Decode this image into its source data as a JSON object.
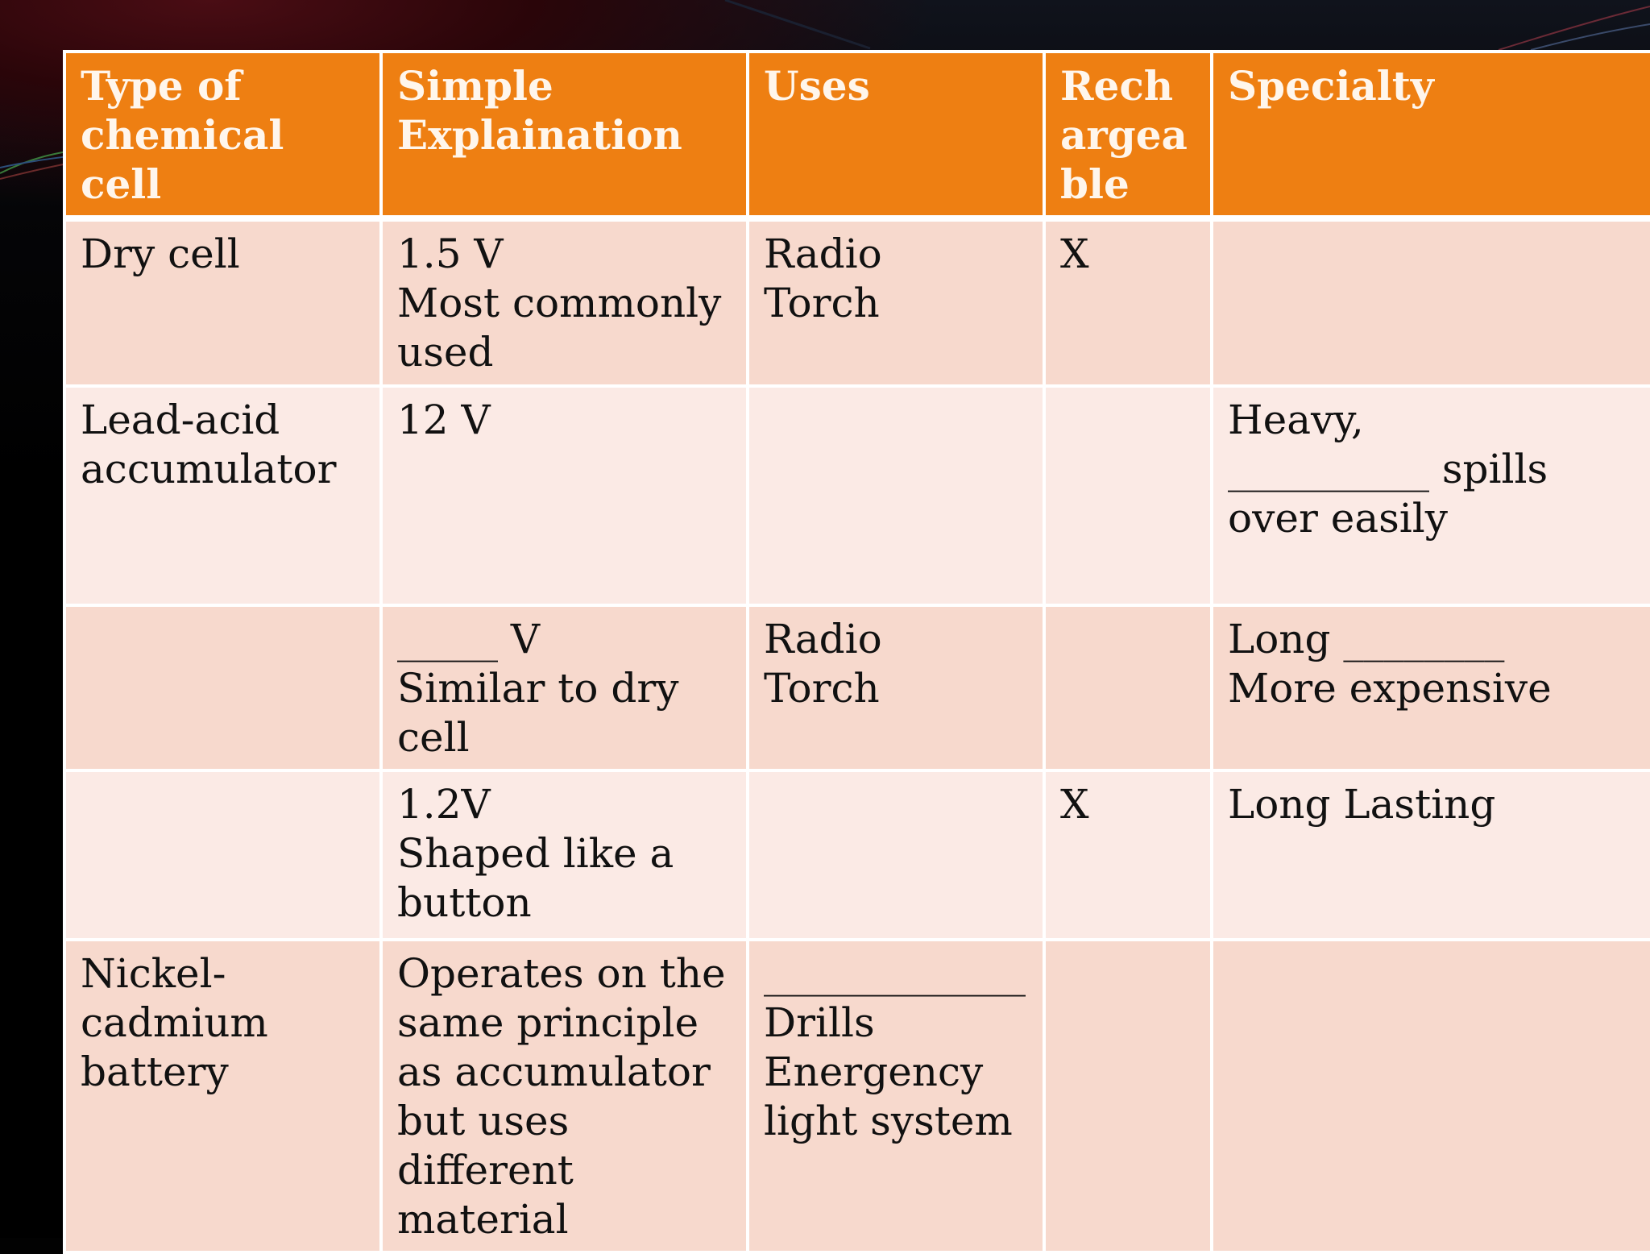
{
  "table": {
    "headers": [
      "Type of chemical cell",
      "Simple Explaination",
      "Uses",
      "Rechargeable",
      "Specialty"
    ],
    "rows": [
      {
        "type": [
          "Dry cell"
        ],
        "explanation": [
          "1.5 V",
          "Most commonly used"
        ],
        "uses": [
          "Radio",
          "Torch"
        ],
        "rechargeable": [
          "X"
        ],
        "specialty": []
      },
      {
        "type": [
          "Lead-acid accumulator"
        ],
        "explanation": [
          "12 V"
        ],
        "uses": [],
        "rechargeable": [],
        "specialty": [
          "Heavy,",
          "__________ spills over easily"
        ]
      },
      {
        "type": [],
        "explanation": [
          "_____ V",
          "Similar to dry cell"
        ],
        "uses": [
          "Radio",
          "Torch"
        ],
        "rechargeable": [],
        "specialty": [
          "Long ________",
          "More expensive"
        ]
      },
      {
        "type": [],
        "explanation": [
          "1.2V",
          "Shaped like a button"
        ],
        "uses": [],
        "rechargeable": [
          "X"
        ],
        "specialty": [
          "Long Lasting"
        ]
      },
      {
        "type": [
          "Nickel-cadmium battery"
        ],
        "explanation": [
          "Operates on the same principle as accumulator but uses different material"
        ],
        "uses": [
          "_____________",
          "Drills",
          "Energency light system"
        ],
        "rechargeable": [],
        "specialty": []
      }
    ]
  },
  "colors": {
    "header_bg": "#ee7f12",
    "header_text": "#fff6ec",
    "row_dark": "#f7d9cd",
    "row_light": "#fbeae5",
    "slide_bg": "#000000"
  }
}
